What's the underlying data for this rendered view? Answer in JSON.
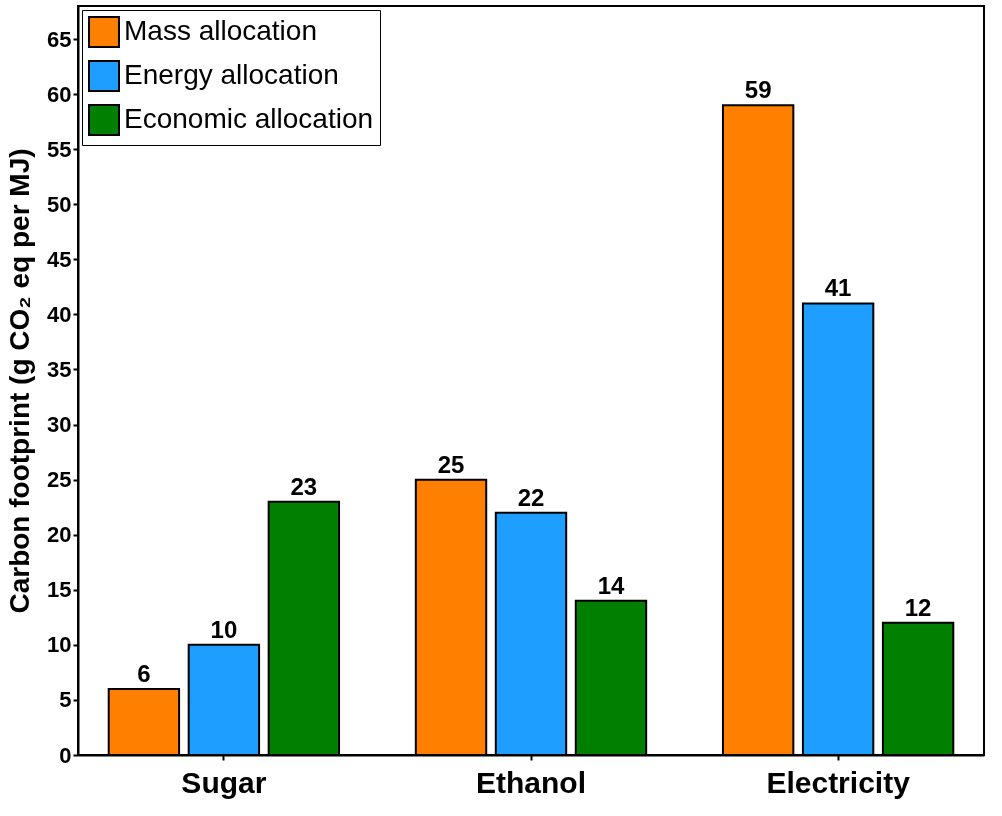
{
  "chart_data": {
    "type": "bar",
    "ylabel": "Carbon footprint (g CO₂ eq per MJ)",
    "categories": [
      "Sugar",
      "Ethanol",
      "Electricity"
    ],
    "series": [
      {
        "name": "Mass allocation",
        "color": "#ff7f00",
        "values": [
          6,
          25,
          59
        ]
      },
      {
        "name": "Energy allocation",
        "color": "#1e9fff",
        "values": [
          10,
          22,
          41
        ]
      },
      {
        "name": "Economic allocation",
        "color": "#007f00",
        "values": [
          23,
          14,
          12
        ]
      }
    ],
    "ylim": [
      0,
      68
    ],
    "yticks": [
      0,
      5,
      10,
      15,
      20,
      25,
      30,
      35,
      40,
      45,
      50,
      55,
      60,
      65
    ],
    "data_labels": true,
    "legend": "top left",
    "grid": false
  }
}
